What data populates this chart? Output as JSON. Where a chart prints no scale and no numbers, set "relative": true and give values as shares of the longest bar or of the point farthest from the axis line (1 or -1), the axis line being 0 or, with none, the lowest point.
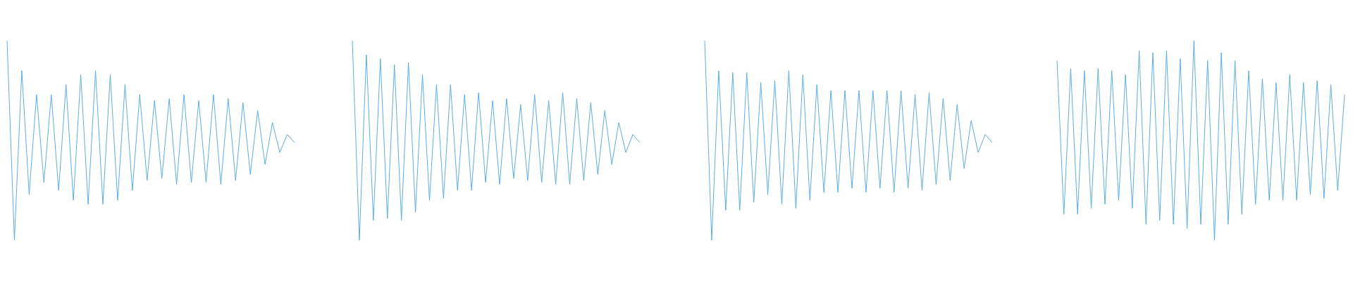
{
  "chart_data": [
    {
      "type": "line",
      "relative": true,
      "grid": false,
      "marker": "none",
      "line_style": "solid",
      "categories": [
        null,
        null,
        null,
        null,
        null,
        null,
        null,
        null,
        null,
        null,
        null,
        null,
        null,
        null,
        null,
        null,
        null,
        null,
        null,
        null,
        null,
        null,
        null,
        null,
        null,
        null,
        null,
        null,
        null,
        null,
        null,
        null,
        null,
        null,
        null,
        null,
        null,
        null,
        null,
        null
      ],
      "series": [
        {
          "color": "#5dade2",
          "values": [
            1,
            0,
            0.85,
            0.23,
            0.73,
            0.29,
            0.73,
            0.25,
            0.78,
            0.2,
            0.83,
            0.18,
            0.85,
            0.18,
            0.83,
            0.2,
            0.78,
            0.25,
            0.73,
            0.3,
            0.7,
            0.31,
            0.71,
            0.28,
            0.73,
            0.29,
            0.7,
            0.29,
            0.73,
            0.28,
            0.71,
            0.3,
            0.69,
            0.33,
            0.65,
            0.38,
            0.59,
            0.44,
            0.53,
            0.49
          ]
        }
      ]
    },
    {
      "type": "line",
      "relative": true,
      "grid": false,
      "marker": "none",
      "line_style": "solid",
      "categories": [
        null,
        null,
        null,
        null,
        null,
        null,
        null,
        null,
        null,
        null,
        null,
        null,
        null,
        null,
        null,
        null,
        null,
        null,
        null,
        null,
        null,
        null,
        null,
        null,
        null,
        null,
        null,
        null,
        null,
        null,
        null,
        null,
        null,
        null,
        null,
        null,
        null,
        null,
        null,
        null,
        null,
        null
      ],
      "series": [
        {
          "color": "#5dade2",
          "values": [
            1,
            0,
            0.93,
            0.1,
            0.91,
            0.11,
            0.88,
            0.1,
            0.89,
            0.14,
            0.83,
            0.2,
            0.78,
            0.21,
            0.78,
            0.25,
            0.73,
            0.25,
            0.74,
            0.29,
            0.7,
            0.28,
            0.71,
            0.31,
            0.68,
            0.3,
            0.73,
            0.29,
            0.7,
            0.28,
            0.74,
            0.28,
            0.71,
            0.3,
            0.69,
            0.33,
            0.65,
            0.38,
            0.59,
            0.44,
            0.53,
            0.49
          ]
        }
      ]
    },
    {
      "type": "line",
      "relative": true,
      "grid": false,
      "marker": "none",
      "line_style": "solid",
      "categories": [
        null,
        null,
        null,
        null,
        null,
        null,
        null,
        null,
        null,
        null,
        null,
        null,
        null,
        null,
        null,
        null,
        null,
        null,
        null,
        null,
        null,
        null,
        null,
        null,
        null,
        null,
        null,
        null,
        null,
        null,
        null,
        null,
        null,
        null,
        null,
        null,
        null,
        null,
        null,
        null,
        null,
        null
      ],
      "series": [
        {
          "color": "#5dade2",
          "values": [
            1,
            0,
            0.85,
            0.15,
            0.84,
            0.15,
            0.84,
            0.19,
            0.79,
            0.23,
            0.8,
            0.18,
            0.85,
            0.16,
            0.83,
            0.2,
            0.78,
            0.24,
            0.75,
            0.24,
            0.75,
            0.26,
            0.75,
            0.24,
            0.75,
            0.26,
            0.75,
            0.24,
            0.75,
            0.26,
            0.73,
            0.25,
            0.74,
            0.28,
            0.71,
            0.3,
            0.68,
            0.36,
            0.6,
            0.44,
            0.53,
            0.49
          ]
        }
      ]
    },
    {
      "type": "line",
      "relative": true,
      "grid": false,
      "marker": "none",
      "line_style": "solid",
      "categories": [
        null,
        null,
        null,
        null,
        null,
        null,
        null,
        null,
        null,
        null,
        null,
        null,
        null,
        null,
        null,
        null,
        null,
        null,
        null,
        null,
        null,
        null,
        null,
        null,
        null,
        null,
        null,
        null,
        null,
        null,
        null,
        null,
        null,
        null,
        null,
        null,
        null,
        null,
        null,
        null,
        null,
        null,
        null
      ],
      "series": [
        {
          "color": "#5dade2",
          "values": [
            0.9,
            0.13,
            0.86,
            0.13,
            0.85,
            0.16,
            0.86,
            0.18,
            0.85,
            0.2,
            0.83,
            0.16,
            0.95,
            0.08,
            0.94,
            0.1,
            0.95,
            0.08,
            0.91,
            0.06,
            1,
            0.08,
            0.9,
            0,
            0.94,
            0.08,
            0.9,
            0.13,
            0.85,
            0.18,
            0.81,
            0.2,
            0.79,
            0.2,
            0.83,
            0.2,
            0.79,
            0.23,
            0.8,
            0.21,
            0.78,
            0.25,
            0.73
          ]
        }
      ]
    }
  ]
}
